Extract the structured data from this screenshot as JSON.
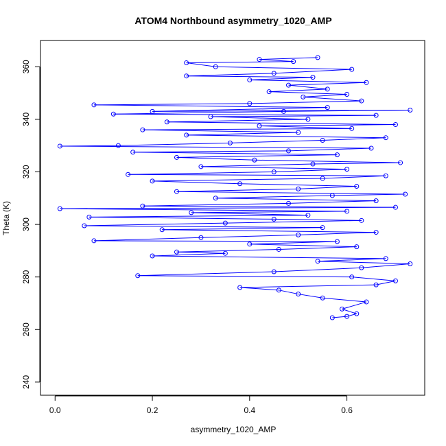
{
  "chart_data": {
    "type": "line",
    "title": "ATOM4 Northbound asymmetry_1020_AMP",
    "xlabel": "asymmetry_1020_AMP",
    "ylabel": "Theta (K)",
    "xlim": [
      -0.03,
      0.76
    ],
    "ylim": [
      235,
      370
    ],
    "xticks": [
      0.0,
      0.2,
      0.4,
      0.6
    ],
    "xtick_labels": [
      "0.0",
      "0.2",
      "0.4",
      "0.6"
    ],
    "yticks": [
      240,
      260,
      280,
      300,
      320,
      340,
      360
    ],
    "ytick_labels": [
      "240",
      "260",
      "280",
      "300",
      "320",
      "340",
      "360"
    ],
    "marker": "open-circle",
    "grid": false,
    "legend": "none",
    "series": [
      {
        "color": "#0000ff",
        "points": [
          [
            0.57,
            264.5
          ],
          [
            0.6,
            265.0
          ],
          [
            0.62,
            266.0
          ],
          [
            0.59,
            267.8
          ],
          [
            0.64,
            270.5
          ],
          [
            0.55,
            272.0
          ],
          [
            0.5,
            273.5
          ],
          [
            0.46,
            275.0
          ],
          [
            0.38,
            276.0
          ],
          [
            0.66,
            277.0
          ],
          [
            0.7,
            278.5
          ],
          [
            0.61,
            280.0
          ],
          [
            0.17,
            280.5
          ],
          [
            0.45,
            282.0
          ],
          [
            0.63,
            283.5
          ],
          [
            0.73,
            285.0
          ],
          [
            0.54,
            286.0
          ],
          [
            0.68,
            287.0
          ],
          [
            0.2,
            288.0
          ],
          [
            0.35,
            289.0
          ],
          [
            0.25,
            289.5
          ],
          [
            0.46,
            290.5
          ],
          [
            0.62,
            291.5
          ],
          [
            0.4,
            292.5
          ],
          [
            0.58,
            293.5
          ],
          [
            0.08,
            293.8
          ],
          [
            0.3,
            295.0
          ],
          [
            0.5,
            296.0
          ],
          [
            0.66,
            297.0
          ],
          [
            0.22,
            298.0
          ],
          [
            0.55,
            298.8
          ],
          [
            0.06,
            299.5
          ],
          [
            0.35,
            300.5
          ],
          [
            0.63,
            301.5
          ],
          [
            0.45,
            302.0
          ],
          [
            0.07,
            302.8
          ],
          [
            0.52,
            303.5
          ],
          [
            0.28,
            304.5
          ],
          [
            0.6,
            305.0
          ],
          [
            0.01,
            306.0
          ],
          [
            0.7,
            306.5
          ],
          [
            0.18,
            307.0
          ],
          [
            0.48,
            308.0
          ],
          [
            0.66,
            309.0
          ],
          [
            0.33,
            310.0
          ],
          [
            0.57,
            311.0
          ],
          [
            0.72,
            311.5
          ],
          [
            0.25,
            312.5
          ],
          [
            0.5,
            313.5
          ],
          [
            0.62,
            314.5
          ],
          [
            0.38,
            315.5
          ],
          [
            0.2,
            316.5
          ],
          [
            0.55,
            317.5
          ],
          [
            0.68,
            318.5
          ],
          [
            0.15,
            319.0
          ],
          [
            0.45,
            320.0
          ],
          [
            0.6,
            321.0
          ],
          [
            0.3,
            322.0
          ],
          [
            0.53,
            323.0
          ],
          [
            0.71,
            323.5
          ],
          [
            0.41,
            324.5
          ],
          [
            0.25,
            325.5
          ],
          [
            0.58,
            326.5
          ],
          [
            0.16,
            327.5
          ],
          [
            0.48,
            328.0
          ],
          [
            0.65,
            329.0
          ],
          [
            0.01,
            329.8
          ],
          [
            0.13,
            330.0
          ],
          [
            0.36,
            331.0
          ],
          [
            0.55,
            332.0
          ],
          [
            0.68,
            333.0
          ],
          [
            0.27,
            334.0
          ],
          [
            0.5,
            335.0
          ],
          [
            0.18,
            336.0
          ],
          [
            0.61,
            336.5
          ],
          [
            0.42,
            337.5
          ],
          [
            0.7,
            338.0
          ],
          [
            0.23,
            339.0
          ],
          [
            0.52,
            340.0
          ],
          [
            0.32,
            341.0
          ],
          [
            0.66,
            341.5
          ],
          [
            0.12,
            342.0
          ],
          [
            0.47,
            343.0
          ],
          [
            0.73,
            343.5
          ],
          [
            0.2,
            343.0
          ],
          [
            0.56,
            344.5
          ],
          [
            0.08,
            345.5
          ],
          [
            0.4,
            346.0
          ],
          [
            0.63,
            347.0
          ],
          [
            0.51,
            348.5
          ],
          [
            0.6,
            349.5
          ],
          [
            0.44,
            350.5
          ],
          [
            0.56,
            351.5
          ],
          [
            0.48,
            353.0
          ],
          [
            0.64,
            354.0
          ],
          [
            0.4,
            355.0
          ],
          [
            0.53,
            356.0
          ],
          [
            0.27,
            356.5
          ],
          [
            0.45,
            357.5
          ],
          [
            0.61,
            359.0
          ],
          [
            0.33,
            360.0
          ],
          [
            0.27,
            361.5
          ],
          [
            0.49,
            362.0
          ],
          [
            0.42,
            362.8
          ],
          [
            0.54,
            363.5
          ]
        ]
      }
    ]
  }
}
